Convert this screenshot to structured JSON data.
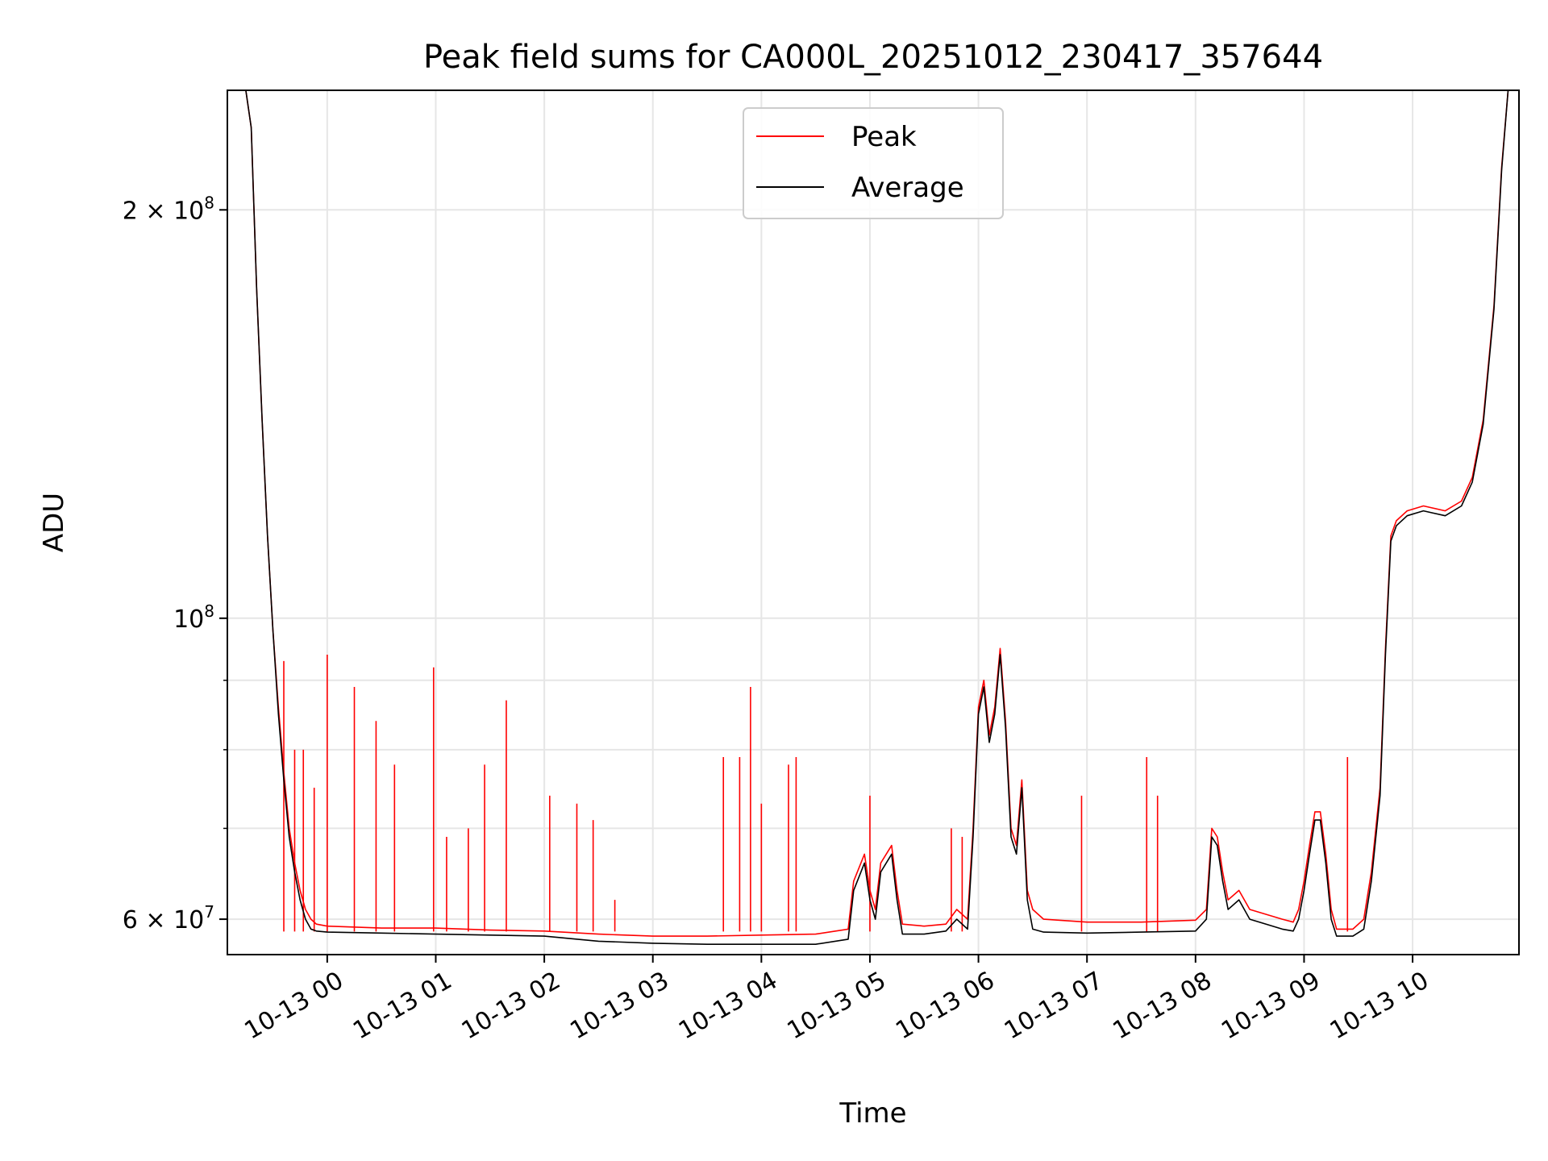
{
  "chart_data": {
    "type": "line",
    "title": "Peak field sums for CA000L_20251012_230417_357644",
    "xlabel": "Time",
    "ylabel": "ADU",
    "yscale": "log",
    "ylim": [
      56500000,
      245000000
    ],
    "xlim": [
      -0.92,
      10.98
    ],
    "grid": true,
    "legend_position": "upper center",
    "x_ticks": [
      {
        "value": 0,
        "label": "10-13 00"
      },
      {
        "value": 1,
        "label": "10-13 01"
      },
      {
        "value": 2,
        "label": "10-13 02"
      },
      {
        "value": 3,
        "label": "10-13 03"
      },
      {
        "value": 4,
        "label": "10-13 04"
      },
      {
        "value": 5,
        "label": "10-13 05"
      },
      {
        "value": 6,
        "label": "10-13 06"
      },
      {
        "value": 7,
        "label": "10-13 07"
      },
      {
        "value": 8,
        "label": "10-13 08"
      },
      {
        "value": 9,
        "label": "10-13 09"
      },
      {
        "value": 10,
        "label": "10-13 10"
      }
    ],
    "y_ticks": [
      {
        "value": 200000000,
        "base": "2 × 10",
        "exp": "8"
      },
      {
        "value": 100000000,
        "base": "10",
        "exp": "8"
      },
      {
        "value": 60000000,
        "base": "6 × 10",
        "exp": "7"
      }
    ],
    "y_minor_ticks": [
      70000000,
      80000000,
      90000000
    ],
    "series": [
      {
        "name": "Peak",
        "color": "#ff0000",
        "points": [
          [
            -0.92,
            245000000
          ],
          [
            -0.75,
            245000000
          ],
          [
            -0.7,
            230000000
          ],
          [
            -0.65,
            175000000
          ],
          [
            -0.6,
            140000000
          ],
          [
            -0.55,
            115000000
          ],
          [
            -0.5,
            98000000
          ],
          [
            -0.45,
            86000000
          ],
          [
            -0.4,
            77000000
          ],
          [
            -0.35,
            70000000
          ],
          [
            -0.3,
            66000000
          ],
          [
            -0.25,
            63000000
          ],
          [
            -0.2,
            61000000
          ],
          [
            -0.15,
            60000000
          ],
          [
            -0.1,
            59500000
          ],
          [
            0,
            59300000
          ],
          [
            0.5,
            59100000
          ],
          [
            1,
            59100000
          ],
          [
            1.5,
            58900000
          ],
          [
            2,
            58800000
          ],
          [
            2.5,
            58500000
          ],
          [
            3,
            58300000
          ],
          [
            3.5,
            58300000
          ],
          [
            4,
            58400000
          ],
          [
            4.5,
            58500000
          ],
          [
            4.8,
            59000000
          ],
          [
            4.85,
            64000000
          ],
          [
            4.95,
            67000000
          ],
          [
            5.0,
            63000000
          ],
          [
            5.05,
            61000000
          ],
          [
            5.1,
            66000000
          ],
          [
            5.2,
            68000000
          ],
          [
            5.25,
            63000000
          ],
          [
            5.3,
            59500000
          ],
          [
            5.5,
            59300000
          ],
          [
            5.7,
            59500000
          ],
          [
            5.8,
            61000000
          ],
          [
            5.9,
            60000000
          ],
          [
            5.95,
            70000000
          ],
          [
            6.0,
            86000000
          ],
          [
            6.05,
            90000000
          ],
          [
            6.1,
            82000000
          ],
          [
            6.15,
            86000000
          ],
          [
            6.2,
            95000000
          ],
          [
            6.25,
            84000000
          ],
          [
            6.3,
            70000000
          ],
          [
            6.35,
            68000000
          ],
          [
            6.4,
            76000000
          ],
          [
            6.45,
            63000000
          ],
          [
            6.5,
            61000000
          ],
          [
            6.6,
            60000000
          ],
          [
            7,
            59700000
          ],
          [
            7.5,
            59700000
          ],
          [
            8,
            59900000
          ],
          [
            8.1,
            61000000
          ],
          [
            8.15,
            70000000
          ],
          [
            8.2,
            69000000
          ],
          [
            8.25,
            65000000
          ],
          [
            8.3,
            62000000
          ],
          [
            8.4,
            63000000
          ],
          [
            8.5,
            61000000
          ],
          [
            8.8,
            60000000
          ],
          [
            8.9,
            59700000
          ],
          [
            8.95,
            61000000
          ],
          [
            9.0,
            64000000
          ],
          [
            9.05,
            68000000
          ],
          [
            9.1,
            72000000
          ],
          [
            9.15,
            72000000
          ],
          [
            9.2,
            67000000
          ],
          [
            9.25,
            61000000
          ],
          [
            9.3,
            59000000
          ],
          [
            9.45,
            59000000
          ],
          [
            9.55,
            60000000
          ],
          [
            9.62,
            65000000
          ],
          [
            9.7,
            75000000
          ],
          [
            9.75,
            95000000
          ],
          [
            9.8,
            115000000
          ],
          [
            9.85,
            118000000
          ],
          [
            9.95,
            120000000
          ],
          [
            10.1,
            121000000
          ],
          [
            10.3,
            120000000
          ],
          [
            10.45,
            122000000
          ],
          [
            10.55,
            127000000
          ],
          [
            10.65,
            140000000
          ],
          [
            10.75,
            170000000
          ],
          [
            10.82,
            215000000
          ],
          [
            10.88,
            245000000
          ],
          [
            10.98,
            245000000
          ]
        ],
        "spikes": [
          [
            -0.4,
            93000000
          ],
          [
            -0.3,
            80000000
          ],
          [
            -0.22,
            80000000
          ],
          [
            -0.12,
            75000000
          ],
          [
            0.0,
            94000000
          ],
          [
            0.25,
            89000000
          ],
          [
            0.45,
            84000000
          ],
          [
            0.62,
            78000000
          ],
          [
            0.98,
            92000000
          ],
          [
            1.1,
            69000000
          ],
          [
            1.3,
            70000000
          ],
          [
            1.45,
            78000000
          ],
          [
            1.65,
            87000000
          ],
          [
            2.05,
            74000000
          ],
          [
            2.3,
            73000000
          ],
          [
            2.45,
            71000000
          ],
          [
            2.65,
            62000000
          ],
          [
            3.65,
            79000000
          ],
          [
            3.8,
            79000000
          ],
          [
            3.9,
            89000000
          ],
          [
            4.0,
            73000000
          ],
          [
            4.25,
            78000000
          ],
          [
            4.32,
            79000000
          ],
          [
            5.0,
            74000000
          ],
          [
            5.75,
            70000000
          ],
          [
            5.85,
            69000000
          ],
          [
            6.95,
            74000000
          ],
          [
            7.55,
            79000000
          ],
          [
            7.65,
            74000000
          ],
          [
            9.4,
            79000000
          ]
        ]
      },
      {
        "name": "Average",
        "color": "#000000",
        "points": [
          [
            -0.92,
            245000000
          ],
          [
            -0.75,
            245000000
          ],
          [
            -0.7,
            230000000
          ],
          [
            -0.65,
            175000000
          ],
          [
            -0.6,
            140000000
          ],
          [
            -0.55,
            115000000
          ],
          [
            -0.5,
            98000000
          ],
          [
            -0.45,
            85000000
          ],
          [
            -0.4,
            76000000
          ],
          [
            -0.35,
            69000000
          ],
          [
            -0.3,
            65000000
          ],
          [
            -0.25,
            62000000
          ],
          [
            -0.2,
            60000000
          ],
          [
            -0.15,
            59000000
          ],
          [
            -0.1,
            58800000
          ],
          [
            0,
            58700000
          ],
          [
            0.5,
            58600000
          ],
          [
            1,
            58500000
          ],
          [
            1.5,
            58400000
          ],
          [
            2,
            58300000
          ],
          [
            2.5,
            57800000
          ],
          [
            3,
            57600000
          ],
          [
            3.5,
            57500000
          ],
          [
            4,
            57500000
          ],
          [
            4.5,
            57500000
          ],
          [
            4.8,
            58000000
          ],
          [
            4.85,
            63000000
          ],
          [
            4.95,
            66000000
          ],
          [
            5.0,
            62000000
          ],
          [
            5.05,
            60000000
          ],
          [
            5.1,
            65000000
          ],
          [
            5.2,
            67000000
          ],
          [
            5.25,
            62000000
          ],
          [
            5.3,
            58500000
          ],
          [
            5.5,
            58500000
          ],
          [
            5.7,
            58800000
          ],
          [
            5.8,
            60000000
          ],
          [
            5.9,
            59000000
          ],
          [
            5.95,
            69000000
          ],
          [
            6.0,
            85000000
          ],
          [
            6.05,
            89000000
          ],
          [
            6.1,
            81000000
          ],
          [
            6.15,
            85000000
          ],
          [
            6.2,
            94000000
          ],
          [
            6.25,
            83000000
          ],
          [
            6.3,
            69000000
          ],
          [
            6.35,
            67000000
          ],
          [
            6.4,
            75000000
          ],
          [
            6.45,
            62000000
          ],
          [
            6.5,
            59000000
          ],
          [
            6.6,
            58700000
          ],
          [
            7,
            58600000
          ],
          [
            7.5,
            58700000
          ],
          [
            8,
            58800000
          ],
          [
            8.1,
            60000000
          ],
          [
            8.15,
            69000000
          ],
          [
            8.2,
            68000000
          ],
          [
            8.25,
            64000000
          ],
          [
            8.3,
            61000000
          ],
          [
            8.4,
            62000000
          ],
          [
            8.5,
            60000000
          ],
          [
            8.8,
            59000000
          ],
          [
            8.9,
            58800000
          ],
          [
            8.95,
            60000000
          ],
          [
            9.0,
            63000000
          ],
          [
            9.05,
            67000000
          ],
          [
            9.1,
            71000000
          ],
          [
            9.15,
            71000000
          ],
          [
            9.2,
            66000000
          ],
          [
            9.25,
            60000000
          ],
          [
            9.3,
            58300000
          ],
          [
            9.45,
            58300000
          ],
          [
            9.55,
            59000000
          ],
          [
            9.62,
            64000000
          ],
          [
            9.7,
            74000000
          ],
          [
            9.75,
            94000000
          ],
          [
            9.8,
            114000000
          ],
          [
            9.85,
            117000000
          ],
          [
            9.95,
            119000000
          ],
          [
            10.1,
            120000000
          ],
          [
            10.3,
            119000000
          ],
          [
            10.45,
            121000000
          ],
          [
            10.55,
            126000000
          ],
          [
            10.65,
            139000000
          ],
          [
            10.75,
            169000000
          ],
          [
            10.82,
            214000000
          ],
          [
            10.88,
            245000000
          ],
          [
            10.98,
            245000000
          ]
        ]
      }
    ]
  }
}
